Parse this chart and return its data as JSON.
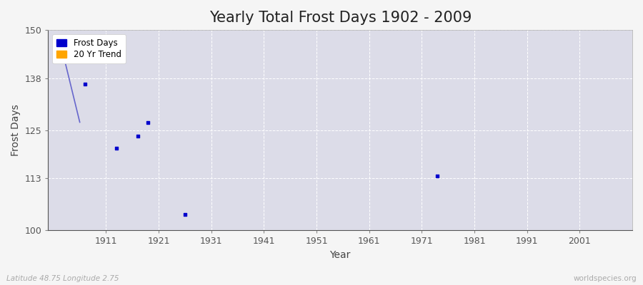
{
  "title": "Yearly Total Frost Days 1902 - 2009",
  "xlabel": "Year",
  "ylabel": "Frost Days",
  "subtitle": "Latitude 48.75 Longitude 2.75",
  "watermark": "worldspecies.org",
  "xlim": [
    1900,
    2011
  ],
  "ylim": [
    100,
    150
  ],
  "yticks": [
    100,
    113,
    125,
    138,
    150
  ],
  "xticks": [
    1911,
    1921,
    1931,
    1941,
    1951,
    1961,
    1971,
    1981,
    1991,
    2001
  ],
  "scatter_x": [
    1907,
    1913,
    1917,
    1919,
    1926,
    1974
  ],
  "scatter_y": [
    136.5,
    120.5,
    123.5,
    127.0,
    104.0,
    113.5
  ],
  "trend_x": [
    1902,
    1906
  ],
  "trend_y": [
    148.5,
    127.0
  ],
  "scatter_color": "#0000cc",
  "trend_color": "#6666cc",
  "background_color": "#dcdce8",
  "plot_bg_color": "#dcdce8",
  "fig_bg_color": "#f5f5f5",
  "grid_color": "#ffffff",
  "title_fontsize": 15,
  "axis_label_fontsize": 10,
  "tick_fontsize": 9
}
